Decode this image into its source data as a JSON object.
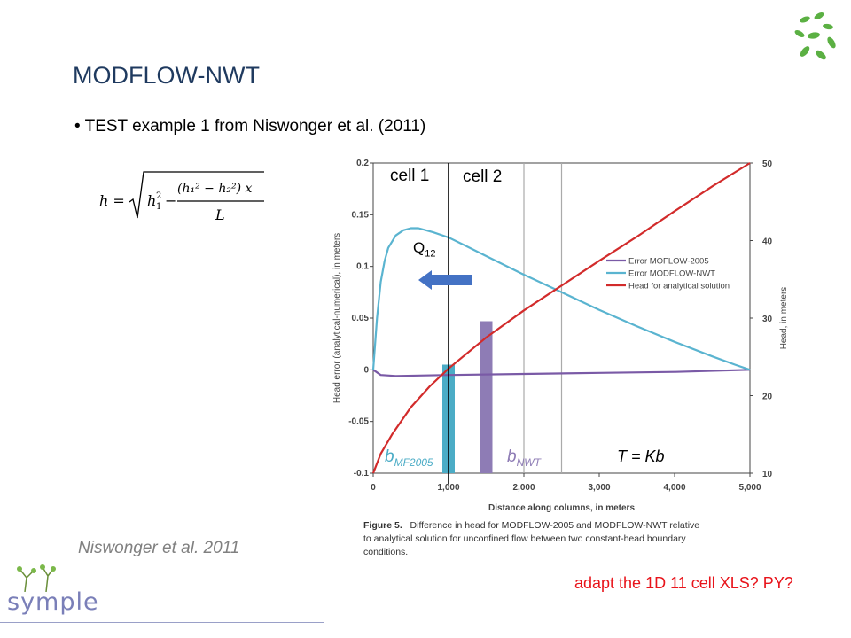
{
  "slide": {
    "title": "MODFLOW-NWT",
    "bullet": "• TEST example 1 from Niswonger et al. (2011)",
    "credit": "Niswonger et al. 2011",
    "todo": "adapt the 1D 11 cell XLS? PY?",
    "logo_text": "symple",
    "formula": {
      "lhs": "h =",
      "h1sq": "h",
      "numerator": "(h₁² − h₂²) x",
      "denominator": "L"
    }
  },
  "annotations": {
    "cell1": "cell 1",
    "cell2": "cell 2",
    "q_main": "Q",
    "q_sub": "12",
    "b_mf_main": "b",
    "b_mf_sub": "MF2005",
    "b_nwt_main": "b",
    "b_nwt_sub": "NWT",
    "t_eq": "T = Kb"
  },
  "caption": {
    "line1_bold": "Figure 5.",
    "line1_rest": "Difference in head for MODFLOW-2005 and MODFLOW-NWT relative",
    "line2": "to analytical solution for unconfined flow between two constant-head boundary",
    "line3": "conditions."
  },
  "colors": {
    "mf2005": "#7a5aa6",
    "nwt": "#5ab4d0",
    "analytical": "#d22b2b",
    "bar_mf": "#4bacc6",
    "bar_nwt": "#8e7cb5",
    "arrow": "#4472c4",
    "title": "#1f3a5f",
    "todo": "#e8141b"
  },
  "chart_data": {
    "type": "line",
    "xlabel": "Distance along columns, in meters",
    "ylabel_left": "Head error (analytical-numerical), in meters",
    "ylabel_right": "Head, in meters",
    "xlim": [
      0,
      5000
    ],
    "ylim_left": [
      -0.1,
      0.2
    ],
    "ylim_right": [
      10,
      50
    ],
    "x_ticks": [
      0,
      1000,
      2000,
      3000,
      4000,
      5000
    ],
    "x_tick_labels": [
      "0",
      "1,000",
      "2,000",
      "3,000",
      "4,000",
      "5,000"
    ],
    "y_left_ticks": [
      -0.1,
      -0.05,
      0,
      0.05,
      0.1,
      0.15,
      0.2
    ],
    "y_left_tick_labels": [
      "-0.1",
      "-0.05",
      "0",
      "0.05",
      "0.1",
      "0.15",
      "0.2"
    ],
    "y_right_ticks": [
      10,
      20,
      30,
      40,
      50
    ],
    "y_right_tick_labels": [
      "10",
      "20",
      "30",
      "40",
      "50"
    ],
    "grid": false,
    "legend_position": "right-middle",
    "series": [
      {
        "name": "Error MOFLOW-2005",
        "axis": "left",
        "x": [
          0,
          100,
          300,
          1000,
          2000,
          3000,
          4000,
          5000
        ],
        "y": [
          0,
          -0.005,
          -0.006,
          -0.005,
          -0.004,
          -0.003,
          -0.002,
          0
        ]
      },
      {
        "name": "Error MODFLOW-NWT",
        "axis": "left",
        "x": [
          0,
          50,
          100,
          150,
          200,
          300,
          400,
          500,
          600,
          700,
          800,
          1000,
          1200,
          1500,
          2000,
          2500,
          3000,
          3500,
          4000,
          4500,
          4800,
          5000
        ],
        "y": [
          0,
          0.05,
          0.085,
          0.105,
          0.118,
          0.13,
          0.135,
          0.137,
          0.137,
          0.135,
          0.133,
          0.128,
          0.121,
          0.11,
          0.092,
          0.075,
          0.058,
          0.042,
          0.027,
          0.013,
          0.005,
          0
        ]
      },
      {
        "name": "Head for analytical solution",
        "axis": "right",
        "x": [
          0,
          100,
          250,
          500,
          750,
          1000,
          1500,
          2000,
          2500,
          3000,
          3500,
          4000,
          4500,
          5000
        ],
        "y": [
          10,
          12.5,
          15,
          18.5,
          21.2,
          23.5,
          27.5,
          31,
          34.2,
          37.4,
          40.5,
          43.8,
          47,
          50
        ]
      }
    ],
    "vertical_lines_x": [
      1000,
      2000,
      2500
    ],
    "cell_boundary_x": 1000,
    "bars": [
      {
        "label": "bMF2005",
        "x": 1000,
        "bottom": -0.1,
        "top": 0.005
      },
      {
        "label": "bNWT",
        "x": 1500,
        "bottom": -0.1,
        "top": 0.047
      }
    ]
  }
}
